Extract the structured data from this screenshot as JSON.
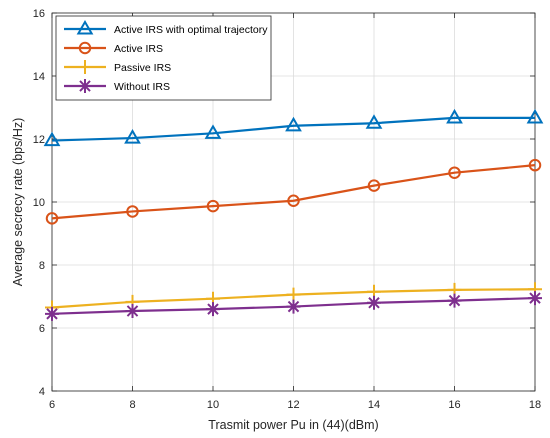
{
  "chart_data": {
    "type": "line",
    "title": "",
    "xlabel": "Trasmit power Pu in (44)(dBm)",
    "ylabel": "Average secrecy rate (bps/Hz)",
    "xlim": [
      6,
      18
    ],
    "ylim": [
      4,
      16
    ],
    "xticks": [
      "6",
      "8",
      "10",
      "12",
      "14",
      "16",
      "18"
    ],
    "yticks": [
      "4",
      "6",
      "8",
      "10",
      "12",
      "14",
      "16"
    ],
    "grid": true,
    "legend_position": "top-left",
    "x": [
      6,
      8,
      10,
      12,
      14,
      16,
      18
    ],
    "series": [
      {
        "name": "Active IRS with optimal trajectory",
        "color": "#0072BD",
        "marker": "triangle",
        "values": [
          11.95,
          12.03,
          12.18,
          12.42,
          12.5,
          12.67,
          12.67
        ]
      },
      {
        "name": "Active IRS",
        "color": "#D95319",
        "marker": "circle",
        "values": [
          9.48,
          9.7,
          9.87,
          10.04,
          10.52,
          10.93,
          11.17
        ]
      },
      {
        "name": "Passive IRS",
        "color": "#EDB120",
        "marker": "plus",
        "values": [
          6.65,
          6.83,
          6.93,
          7.06,
          7.15,
          7.21,
          7.23
        ]
      },
      {
        "name": "Without IRS",
        "color": "#7E2F8E",
        "marker": "asterisk",
        "values": [
          6.45,
          6.54,
          6.6,
          6.68,
          6.8,
          6.87,
          6.95
        ]
      }
    ]
  }
}
